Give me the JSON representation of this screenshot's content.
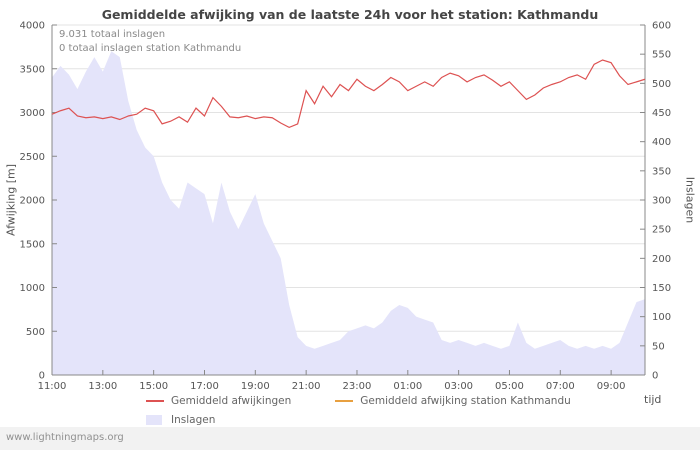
{
  "page": {
    "footer": "www.lightningmaps.org"
  },
  "chart_data": {
    "type": "line",
    "title": "Gemiddelde afwijking van de laatste 24h voor het station: Kathmandu",
    "annotations": [
      "9.031 totaal inslagen",
      "0 totaal inslagen station Kathmandu"
    ],
    "left_axis": {
      "label": "Afwijking [m]",
      "min": 0,
      "max": 4000,
      "ticks": [
        0,
        500,
        1000,
        1500,
        2000,
        2500,
        3000,
        3500,
        4000
      ]
    },
    "right_axis": {
      "label": "Inslagen",
      "min": 0,
      "max": 600,
      "ticks": [
        0,
        50,
        100,
        150,
        200,
        250,
        300,
        350,
        400,
        450,
        500,
        550,
        600
      ]
    },
    "x_axis": {
      "label": "tijd",
      "tick_labels": [
        "11:00",
        "13:00",
        "15:00",
        "17:00",
        "19:00",
        "21:00",
        "23:00",
        "01:00",
        "03:00",
        "05:00",
        "07:00",
        "09:00"
      ],
      "tick_hours": [
        0,
        2,
        4,
        6,
        8,
        10,
        12,
        14,
        16,
        18,
        20,
        22
      ],
      "total_hours": 23.333,
      "point_interval_hours": 0.3333,
      "grid": "horizontal-only"
    },
    "legend_position": "bottom",
    "series": [
      {
        "name": "Gemiddeld afwijkingen",
        "type": "line",
        "axis": "left",
        "color": "#dd5252",
        "values": [
          2980,
          3020,
          3050,
          2960,
          2940,
          2950,
          2930,
          2950,
          2920,
          2960,
          2980,
          3050,
          3020,
          2870,
          2900,
          2950,
          2890,
          3050,
          2960,
          3170,
          3070,
          2950,
          2940,
          2960,
          2930,
          2950,
          2940,
          2880,
          2830,
          2870,
          3250,
          3100,
          3300,
          3180,
          3320,
          3250,
          3380,
          3300,
          3250,
          3320,
          3400,
          3350,
          3250,
          3300,
          3350,
          3300,
          3400,
          3450,
          3420,
          3350,
          3400,
          3430,
          3370,
          3300,
          3350,
          3250,
          3150,
          3200,
          3280,
          3320,
          3350,
          3400,
          3430,
          3380,
          3550,
          3600,
          3570,
          3420,
          3320,
          3350,
          3380
        ]
      },
      {
        "name": "Gemiddeld afwijking station Kathmandu",
        "type": "line",
        "axis": "left",
        "color": "#e8a040",
        "values": []
      },
      {
        "name": "Inslagen",
        "type": "area",
        "axis": "right",
        "color": "#e4e4fa",
        "values": [
          510,
          530,
          515,
          490,
          520,
          545,
          520,
          555,
          545,
          470,
          420,
          390,
          375,
          330,
          300,
          285,
          330,
          320,
          310,
          260,
          330,
          280,
          250,
          280,
          310,
          260,
          230,
          200,
          120,
          65,
          50,
          45,
          50,
          55,
          60,
          75,
          80,
          85,
          80,
          90,
          110,
          120,
          115,
          100,
          95,
          90,
          60,
          55,
          60,
          55,
          50,
          55,
          50,
          45,
          50,
          90,
          55,
          45,
          50,
          55,
          60,
          50,
          45,
          50,
          45,
          50,
          45,
          55,
          90,
          125,
          130
        ]
      }
    ]
  }
}
